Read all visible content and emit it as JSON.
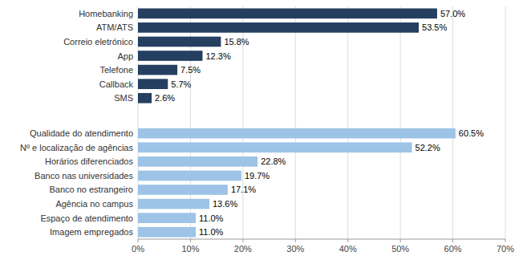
{
  "chart_data": {
    "type": "bar",
    "orientation": "horizontal",
    "categories": [
      "Homebanking",
      "ATM/ATS",
      "Correio eletrónico",
      "App",
      "Telefone",
      "Callback",
      "SMS",
      "Qualidade do atendimento",
      "Nº e localização de agências",
      "Horários diferenciados",
      "Banco nas universidades",
      "Banco no estrangeiro",
      "Agência no campus",
      "Espaço de atendimento",
      "Imagem empregados"
    ],
    "values": [
      57.0,
      53.5,
      15.8,
      12.3,
      7.5,
      5.7,
      2.6,
      60.5,
      52.2,
      22.8,
      19.7,
      17.1,
      13.6,
      11.0,
      11.0
    ],
    "value_labels": [
      "57.0%",
      "53.5%",
      "15.8%",
      "12.3%",
      "7.5%",
      "5.7%",
      "2.6%",
      "60.5%",
      "52.2%",
      "22.8%",
      "19.7%",
      "17.1%",
      "13.6%",
      "11.0%",
      "11.0%"
    ],
    "colors": [
      "#243F60",
      "#243F60",
      "#243F60",
      "#243F60",
      "#243F60",
      "#243F60",
      "#243F60",
      "#9DC3E6",
      "#9DC3E6",
      "#9DC3E6",
      "#9DC3E6",
      "#9DC3E6",
      "#9DC3E6",
      "#9DC3E6",
      "#9DC3E6"
    ],
    "xlim": [
      0,
      70
    ],
    "xticks": [
      {
        "value": 0,
        "label": "0%"
      },
      {
        "value": 10,
        "label": "10%"
      },
      {
        "value": 20,
        "label": "20%"
      },
      {
        "value": 30,
        "label": "30%"
      },
      {
        "value": 40,
        "label": "40%"
      },
      {
        "value": 50,
        "label": "50%"
      },
      {
        "value": 60,
        "label": "60%"
      },
      {
        "value": 70,
        "label": "70%"
      }
    ],
    "grid": true,
    "data_labels": true
  }
}
